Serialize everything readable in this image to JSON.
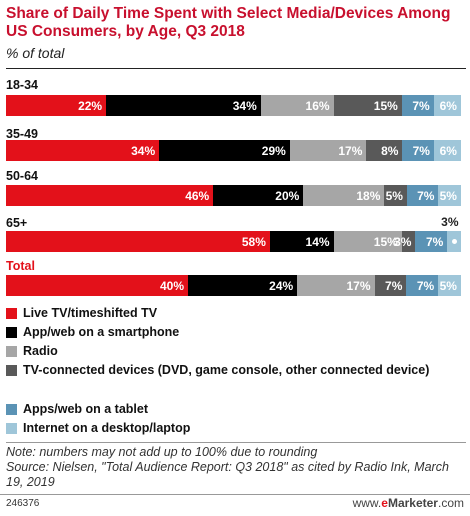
{
  "chart_data": {
    "type": "bar",
    "orientation": "horizontal-stacked",
    "title": "Share of Daily Time Spent with Select Media/Devices Among US Consumers, by Age, Q3 2018",
    "subtitle": "% of total",
    "categories": [
      "18-34",
      "35-49",
      "50-64",
      "65+",
      "Total"
    ],
    "series": [
      {
        "name": "Live TV/timeshifted TV",
        "color": "#e3111a",
        "values": [
          22,
          34,
          46,
          58,
          40
        ],
        "labels": [
          "22%",
          "34%",
          "46%",
          "58%",
          "40%"
        ]
      },
      {
        "name": "App/web on a smartphone",
        "color": "#000000",
        "values": [
          34,
          29,
          20,
          14,
          24
        ],
        "labels": [
          "34%",
          "29%",
          "20%",
          "14%",
          "24%"
        ]
      },
      {
        "name": "Radio",
        "color": "#a6a6a6",
        "values": [
          16,
          17,
          18,
          15,
          17
        ],
        "labels": [
          "16%",
          "17%",
          "18%",
          "15%",
          "17%"
        ]
      },
      {
        "name": "TV-connected devices (DVD, game console, other connected device)",
        "color": "#595959",
        "values": [
          15,
          8,
          5,
          3,
          7
        ],
        "labels": [
          "15%",
          "8%",
          "5%",
          "3%",
          "7%"
        ]
      },
      {
        "name": "Apps/web on a tablet",
        "color": "#5b93b5",
        "values": [
          7,
          7,
          7,
          7,
          7
        ],
        "labels": [
          "7%",
          "7%",
          "7%",
          "7%",
          "7%"
        ]
      },
      {
        "name": "Internet on a desktop/laptop",
        "color": "#9fc6d9",
        "values": [
          6,
          6,
          5,
          3,
          5
        ],
        "labels": [
          "6%",
          "6%",
          "5%",
          "3%",
          "5%"
        ]
      }
    ]
  },
  "note": "Note: numbers may not add up to 100% due to rounding",
  "source": "Source: Nielsen, \"Total Audience Report: Q3 2018\" as cited by Radio Ink, March 19, 2019",
  "chart_id": "246376",
  "brand_prefix": "www.",
  "brand_e": "e",
  "brand_rest": "Marketer",
  "brand_suffix": ".com"
}
